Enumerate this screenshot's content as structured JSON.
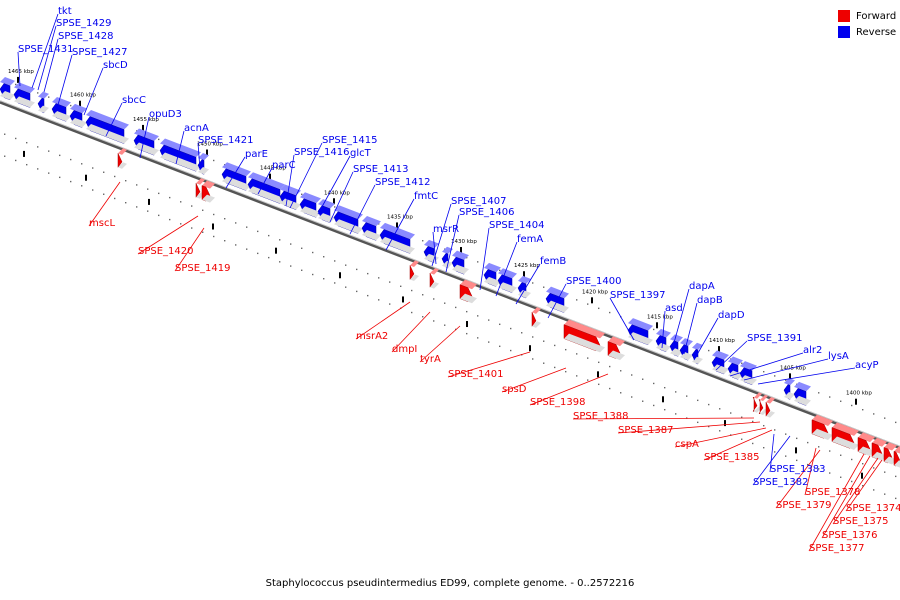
{
  "caption": "Staphylococcus pseudintermedius ED99, complete genome. - 0..2572216",
  "legend": [
    {
      "label": "Forward",
      "color": "#ee0000"
    },
    {
      "label": "Reverse",
      "color": "#0000ee"
    }
  ],
  "colors": {
    "forward": "#ee0000",
    "reverse": "#0000ee",
    "backbone": "#8a8a8a"
  },
  "scale_labels": [
    "1465 kbp",
    "1460 kbp",
    "1455 kbp",
    "1450 kbp",
    "1445 kbp",
    "1440 kbp",
    "1435 kbp",
    "1430 kbp",
    "1425 kbp",
    "1420 kbp",
    "1415 kbp",
    "1410 kbp",
    "1405 kbp",
    "1400 kbp"
  ],
  "reverse_genes": [
    "tkt",
    "SPSE_1429",
    "SPSE_1428",
    "SPSE_1431",
    "SPSE_1427",
    "sbcD",
    "sbcC",
    "opuD3",
    "acnA",
    "SPSE_1421",
    "parE",
    "parC",
    "SPSE_1415",
    "SPSE_1416",
    "glcT",
    "SPSE_1413",
    "SPSE_1412",
    "fmtC",
    "SPSE_1407",
    "SPSE_1406",
    "msrR",
    "SPSE_1404",
    "femA",
    "femB",
    "SPSE_1400",
    "SPSE_1397",
    "asd",
    "dapA",
    "dapB",
    "dapD",
    "SPSE_1391",
    "alr2",
    "lysA",
    "acyP",
    "SPSE_1383",
    "SPSE_1382"
  ],
  "forward_genes": [
    "mscL",
    "SPSE_1420",
    "SPSE_1419",
    "msrA2",
    "dmpI",
    "tyrA",
    "SPSE_1401",
    "spsD",
    "SPSE_1398",
    "SPSE_1388",
    "SPSE_1387",
    "cspA",
    "SPSE_1385",
    "SPSE_1378",
    "SPSE_1379",
    "SPSE_1374",
    "SPSE_1375",
    "SPSE_1376",
    "SPSE_1377"
  ]
}
